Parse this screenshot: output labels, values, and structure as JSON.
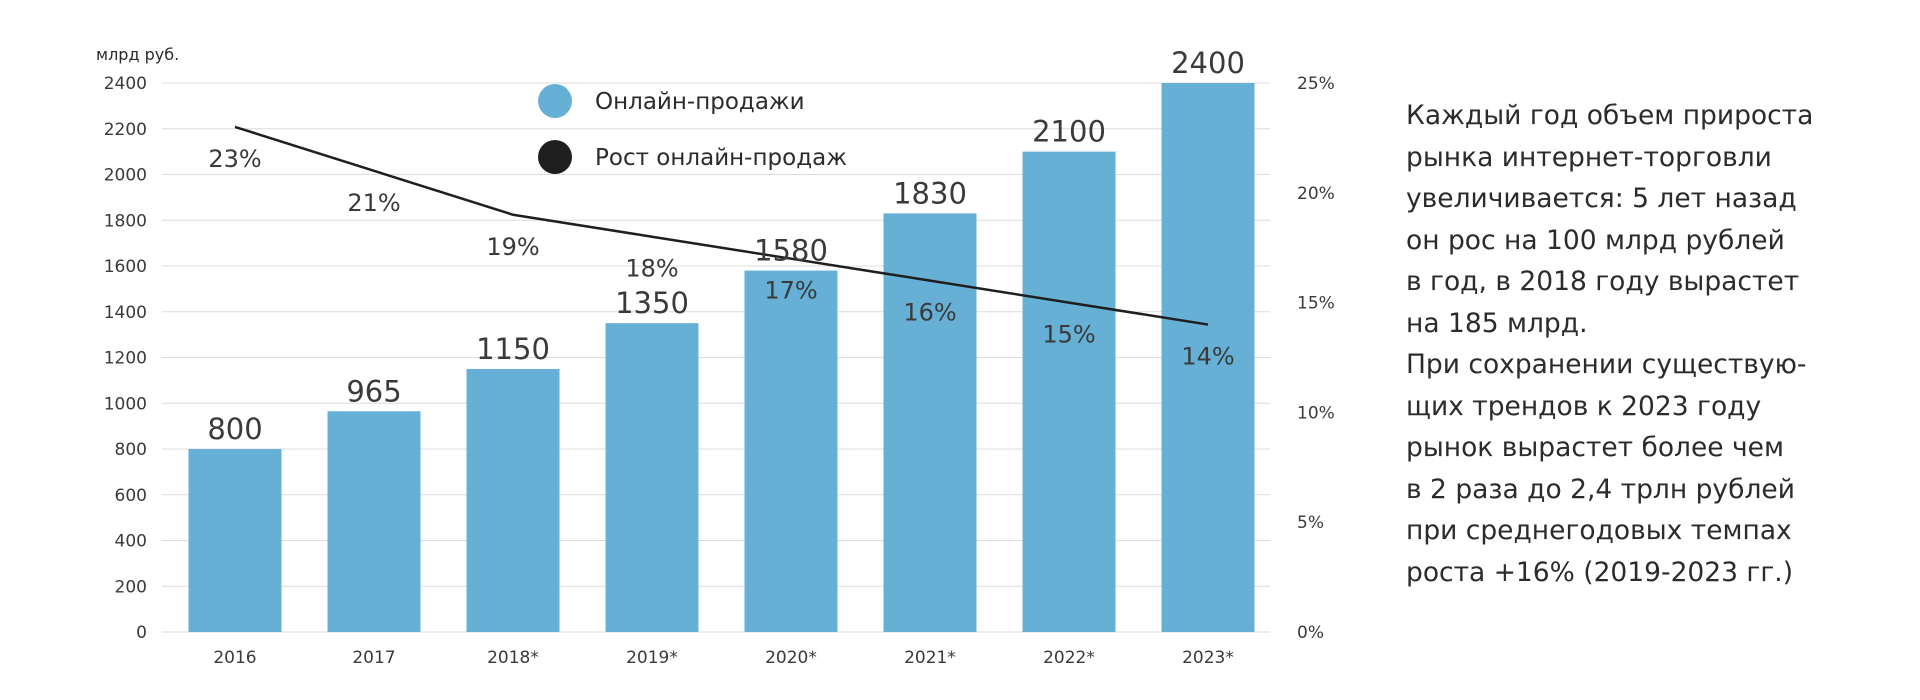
{
  "chart_data": {
    "type": "bar",
    "unit_label": "млрд руб.",
    "categories": [
      "2016",
      "2017",
      "2018*",
      "2019*",
      "2020*",
      "2021*",
      "2022*",
      "2023*"
    ],
    "series": [
      {
        "name": "Онлайн-продажи",
        "kind": "bar",
        "axis": "left",
        "color": "#66b0d6",
        "values": [
          800,
          965,
          1150,
          1350,
          1580,
          1830,
          2100,
          2400
        ],
        "value_labels": [
          "800",
          "965",
          "1150",
          "1350",
          "1580",
          "1830",
          "2100",
          "2400"
        ]
      },
      {
        "name": "Рост онлайн-продаж",
        "kind": "line",
        "axis": "right",
        "color": "#1f1f1f",
        "values": [
          23,
          21,
          19,
          18,
          17,
          16,
          15,
          14
        ],
        "value_labels": [
          "23%",
          "21%",
          "19%",
          "18%",
          "17%",
          "16%",
          "15%",
          "14%"
        ]
      }
    ],
    "y_left": {
      "range": [
        0,
        2400
      ],
      "ticks": [
        "0",
        "200",
        "400",
        "600",
        "800",
        "1000",
        "1200",
        "1400",
        "1600",
        "1800",
        "2000",
        "2200",
        "2400"
      ]
    },
    "y_right": {
      "range": [
        0,
        25
      ],
      "ticks": [
        "0%",
        "5%",
        "10%",
        "15%",
        "20%",
        "25%"
      ]
    },
    "grid": true,
    "legend_position": "top-left"
  },
  "side_text": {
    "lines": [
      "Каждый год объем прироста",
      "рынка интернет-торговли",
      "увеличивается: 5 лет назад",
      "он рос на 100 млрд рублей",
      "в год, в 2018 году вырастет",
      "на 185 млрд.",
      "При сохранении существую-",
      "щих трендов  к 2023 году",
      "рынок вырастет более чем",
      "в 2 раза до  2,4 трлн рублей",
      "при среднегодовых темпах",
      "роста +16% (2019-2023 гг.)"
    ]
  }
}
